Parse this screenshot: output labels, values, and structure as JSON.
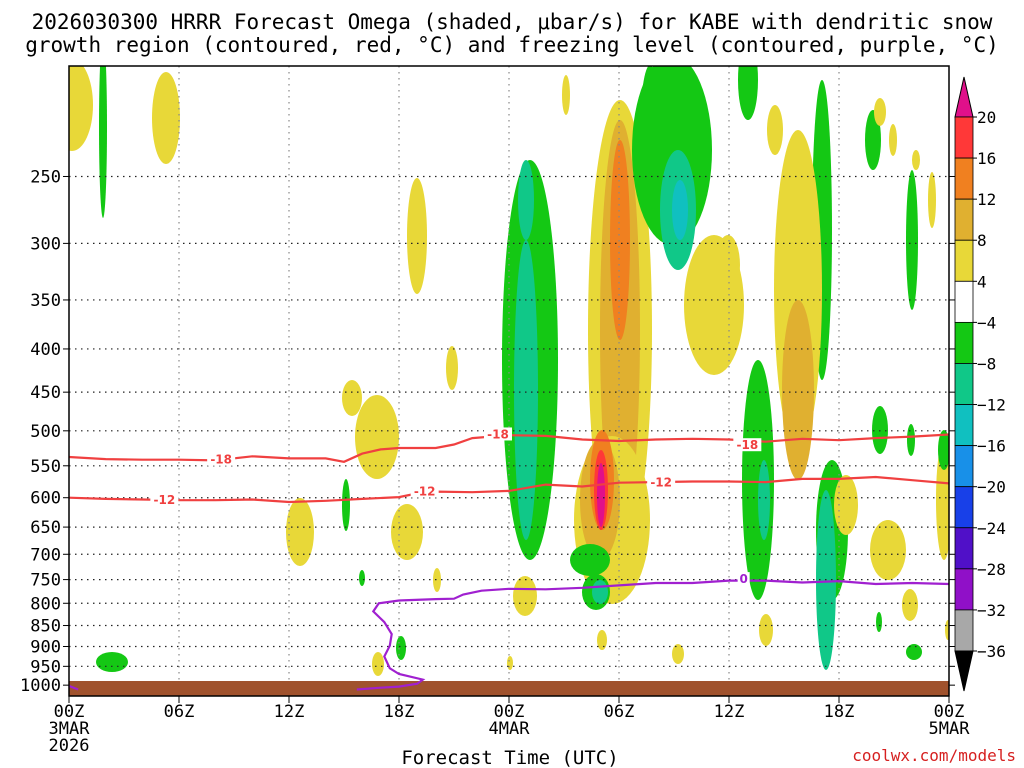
{
  "chart_data": {
    "type": "contour",
    "title_lines": [
      "2026030300 HRRR Forecast Omega (shaded, μbar/s) for KABE with dendritic snow",
      "growth region (contoured, red, °C) and freezing level (contoured, purple, °C)"
    ],
    "xlabel": "Forecast Time (UTC)",
    "credit": "coolwx.com/models",
    "x_range_hours": [
      0,
      48
    ],
    "y_range_hPa": [
      1030,
      185
    ],
    "x_ticks": [
      {
        "hour": 0,
        "lines": [
          "00Z",
          "3MAR",
          "2026"
        ]
      },
      {
        "hour": 6,
        "lines": [
          "06Z"
        ]
      },
      {
        "hour": 12,
        "lines": [
          "12Z"
        ]
      },
      {
        "hour": 18,
        "lines": [
          "18Z"
        ]
      },
      {
        "hour": 24,
        "lines": [
          "00Z",
          "4MAR"
        ]
      },
      {
        "hour": 30,
        "lines": [
          "06Z"
        ]
      },
      {
        "hour": 36,
        "lines": [
          "12Z"
        ]
      },
      {
        "hour": 42,
        "lines": [
          "18Z"
        ]
      },
      {
        "hour": 48,
        "lines": [
          "00Z",
          "5MAR"
        ]
      }
    ],
    "y_ticks": [
      250,
      300,
      350,
      400,
      450,
      500,
      550,
      600,
      650,
      700,
      750,
      800,
      850,
      900,
      950,
      1000
    ],
    "y_tick_labels": [
      "250",
      "300",
      "350",
      "400",
      "450",
      "500",
      "550",
      "600",
      "650",
      "700",
      "750",
      "800",
      "850",
      "900",
      "950",
      "1000"
    ],
    "colorbar": {
      "labels": [
        "20",
        "16",
        "12",
        "8",
        "4",
        "−4",
        "−8",
        "−12",
        "−16",
        "−20",
        "−24",
        "−28",
        "−32",
        "−36"
      ],
      "colors": [
        "#ff3838",
        "#f08020",
        "#e0b030",
        "#e8d838",
        "#ffffff",
        "#14c814",
        "#10c888",
        "#10c0c0",
        "#1890e8",
        "#1840e8",
        "#5010c8",
        "#9010c8",
        "#a8a8a8"
      ]
    },
    "contours": [
      {
        "name": "-18",
        "color": "#f04040",
        "label": "-18",
        "label_points": [
          [
            8.3,
            541
          ],
          [
            23.4,
            505
          ],
          [
            37.0,
            520
          ]
        ],
        "points": [
          [
            0,
            537
          ],
          [
            2,
            540
          ],
          [
            4,
            541
          ],
          [
            6,
            541
          ],
          [
            8,
            542
          ],
          [
            10,
            536
          ],
          [
            12,
            539
          ],
          [
            14,
            539
          ],
          [
            15,
            544
          ],
          [
            16,
            532
          ],
          [
            17,
            526
          ],
          [
            18,
            524
          ],
          [
            20,
            524
          ],
          [
            21,
            519
          ],
          [
            22,
            510
          ],
          [
            24,
            506
          ],
          [
            26,
            507
          ],
          [
            28,
            512
          ],
          [
            30,
            514
          ],
          [
            32,
            512
          ],
          [
            34,
            511
          ],
          [
            36,
            512
          ],
          [
            38,
            515
          ],
          [
            40,
            511
          ],
          [
            42,
            513
          ],
          [
            44,
            510
          ],
          [
            46,
            508
          ],
          [
            48,
            505
          ]
        ]
      },
      {
        "name": "-12",
        "color": "#f04040",
        "label": "-12",
        "label_points": [
          [
            5.2,
            604
          ],
          [
            19.4,
            590
          ],
          [
            32.3,
            576
          ]
        ],
        "points": [
          [
            0,
            600
          ],
          [
            2,
            602
          ],
          [
            4,
            603
          ],
          [
            6,
            604
          ],
          [
            8,
            604
          ],
          [
            10,
            603
          ],
          [
            12,
            607
          ],
          [
            14,
            605
          ],
          [
            16,
            602
          ],
          [
            18,
            599
          ],
          [
            19,
            593
          ],
          [
            20,
            590
          ],
          [
            22,
            591
          ],
          [
            24,
            589
          ],
          [
            26,
            579
          ],
          [
            28,
            582
          ],
          [
            30,
            576
          ],
          [
            32,
            575
          ],
          [
            34,
            574
          ],
          [
            36,
            574
          ],
          [
            38,
            575
          ],
          [
            40,
            570
          ],
          [
            42,
            570
          ],
          [
            44,
            567
          ],
          [
            46,
            572
          ],
          [
            48,
            577
          ]
        ]
      },
      {
        "name": "0",
        "color": "#a020d0",
        "label": "0",
        "label_points": [
          [
            36.8,
            749
          ]
        ],
        "points": [
          [
            0,
            1002
          ],
          [
            0.5,
            1012
          ]
        ],
        "segments": [
          [
            [
              15.7,
              1012
            ],
            [
              17,
              1007
            ],
            [
              18,
              1004
            ],
            [
              19,
              996
            ],
            [
              19.3,
              985
            ],
            [
              18,
              970
            ],
            [
              17.5,
              955
            ],
            [
              17.2,
              925
            ],
            [
              17.5,
              898
            ],
            [
              17.6,
              870
            ],
            [
              17.2,
              842
            ],
            [
              16.6,
              818
            ],
            [
              16.9,
              800
            ],
            [
              18,
              794
            ],
            [
              20,
              791
            ],
            [
              21,
              790
            ],
            [
              21.5,
              781
            ],
            [
              22.5,
              773
            ],
            [
              24,
              769
            ],
            [
              26,
              770
            ],
            [
              28,
              767
            ],
            [
              30,
              762
            ],
            [
              32,
              757
            ],
            [
              34,
              757
            ],
            [
              36,
              752
            ],
            [
              38,
              752
            ],
            [
              40,
              756
            ],
            [
              42,
              753
            ],
            [
              44,
              759
            ],
            [
              46,
              757
            ],
            [
              48,
              759
            ]
          ]
        ]
      }
    ],
    "omega_regions_note": "Shaded omega regions are illustrative reconstructions of the filled contours."
  }
}
